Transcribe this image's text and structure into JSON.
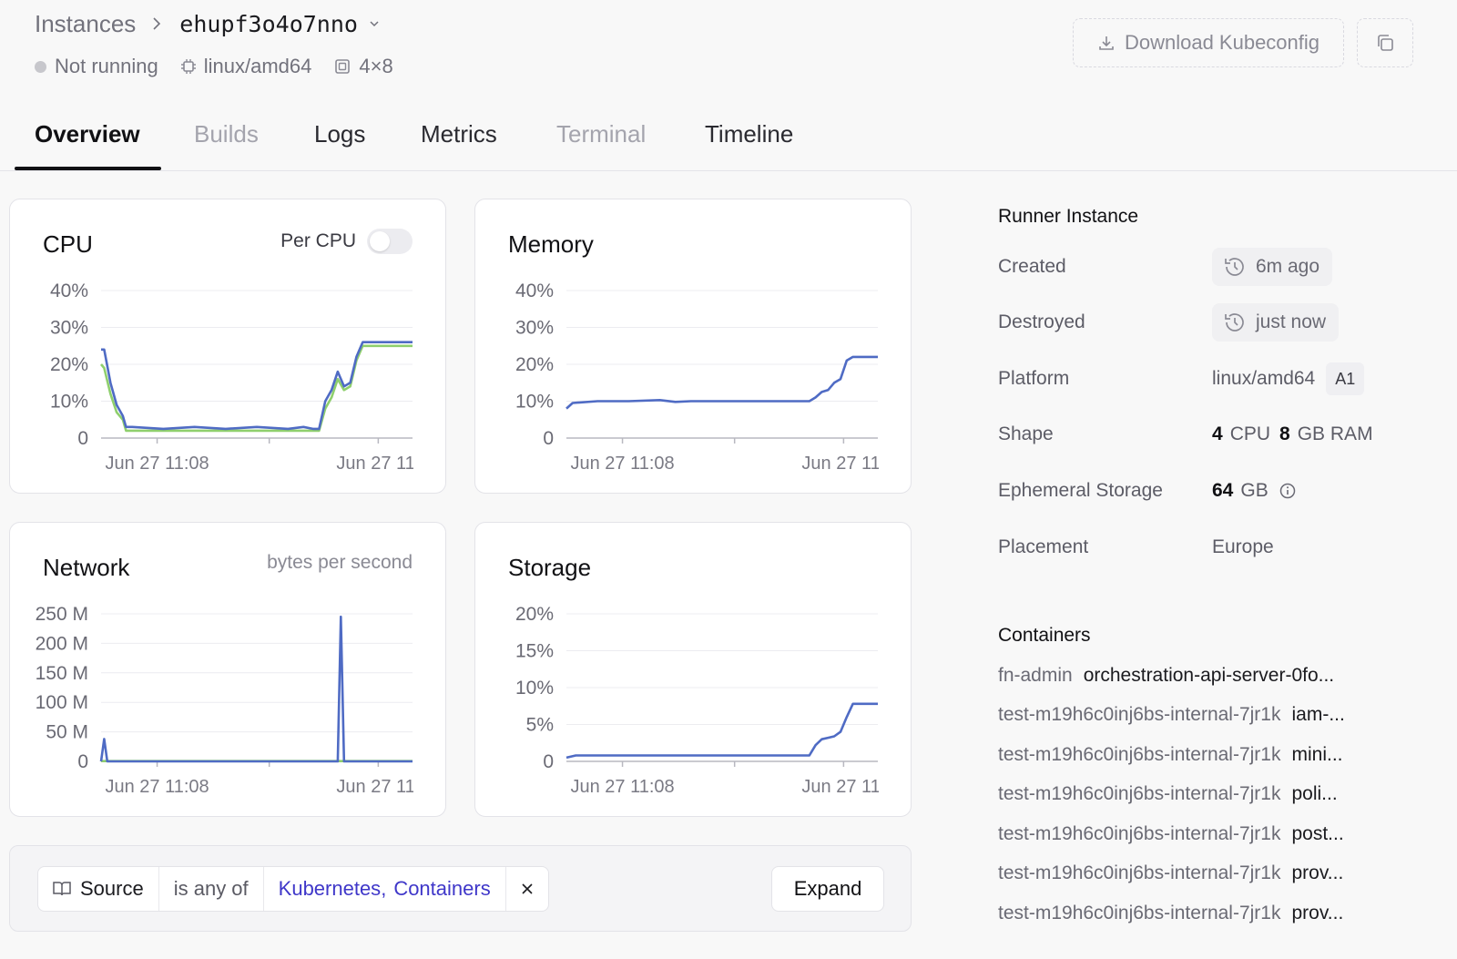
{
  "breadcrumb": {
    "root": "Instances",
    "instance_id": "ehupf3o4o7nno"
  },
  "status": {
    "state": "Not running",
    "platform": "linux/amd64",
    "shape": "4×8"
  },
  "actions": {
    "download_label": "Download Kubeconfig"
  },
  "tabs": [
    {
      "label": "Overview",
      "state": "active"
    },
    {
      "label": "Builds",
      "state": "disabled"
    },
    {
      "label": "Logs",
      "state": "normal"
    },
    {
      "label": "Metrics",
      "state": "normal"
    },
    {
      "label": "Terminal",
      "state": "disabled"
    },
    {
      "label": "Timeline",
      "state": "normal"
    }
  ],
  "cards": {
    "cpu": {
      "title": "CPU",
      "toggle_label": "Per CPU"
    },
    "memory": {
      "title": "Memory"
    },
    "network": {
      "title": "Network",
      "subtitle": "bytes per second"
    },
    "storage": {
      "title": "Storage"
    }
  },
  "colors": {
    "series_blue": "#4f6bc4",
    "series_green": "#8fcf6d",
    "link_purple": "#3f37c9"
  },
  "chart_data": [
    {
      "id": "cpu",
      "type": "line",
      "title": "CPU",
      "ylim": [
        0,
        40
      ],
      "yticks": [
        "0",
        "10%",
        "20%",
        "30%",
        "40%"
      ],
      "ytick_values": [
        0,
        10,
        20,
        30,
        40
      ],
      "xtick_labels": [
        "Jun 27 11:08",
        "Jun 27 11:"
      ],
      "series": [
        {
          "color": "#8fcf6d",
          "x": [
            0,
            1,
            3,
            5,
            7,
            8,
            10,
            20,
            30,
            40,
            50,
            60,
            65,
            68,
            70,
            72,
            74,
            76,
            78,
            80,
            82,
            84,
            86,
            87,
            88,
            100
          ],
          "y": [
            20,
            19,
            12,
            7,
            5,
            2,
            2,
            2,
            2,
            2,
            2,
            2,
            2,
            2,
            2,
            8,
            11,
            16,
            13,
            14,
            21,
            25,
            25,
            25,
            25,
            25
          ]
        },
        {
          "color": "#4f6bc4",
          "x": [
            0,
            1,
            3,
            5,
            7,
            8,
            10,
            20,
            30,
            40,
            50,
            60,
            65,
            68,
            70,
            72,
            74,
            76,
            78,
            80,
            82,
            84,
            86,
            87,
            88,
            100
          ],
          "y": [
            24,
            24,
            15,
            9,
            6,
            3,
            3,
            2.5,
            3,
            2.5,
            3,
            2.5,
            3,
            2.5,
            2.5,
            10,
            13,
            18,
            14,
            15,
            22,
            26,
            26,
            26,
            26,
            26
          ]
        }
      ]
    },
    {
      "id": "memory",
      "type": "line",
      "title": "Memory",
      "ylim": [
        0,
        40
      ],
      "yticks": [
        "0",
        "10%",
        "20%",
        "30%",
        "40%"
      ],
      "ytick_values": [
        0,
        10,
        20,
        30,
        40
      ],
      "xtick_labels": [
        "Jun 27 11:08",
        "Jun 27 11:"
      ],
      "series": [
        {
          "color": "#4f6bc4",
          "x": [
            0,
            2,
            10,
            20,
            30,
            35,
            40,
            50,
            60,
            70,
            78,
            80,
            82,
            84,
            86,
            88,
            90,
            92,
            94,
            100
          ],
          "y": [
            8,
            9.5,
            10,
            10,
            10.3,
            9.8,
            10,
            10,
            10,
            10,
            10,
            11,
            12.5,
            13,
            15,
            16,
            21,
            22,
            22,
            22
          ]
        }
      ]
    },
    {
      "id": "network",
      "type": "line",
      "title": "Network",
      "subtitle": "bytes per second",
      "ylim": [
        0,
        250
      ],
      "yticks": [
        "0",
        "50 M",
        "100 M",
        "150 M",
        "200 M",
        "250 M"
      ],
      "ytick_values": [
        0,
        50,
        100,
        150,
        200,
        250
      ],
      "xtick_labels": [
        "Jun 27 11:08",
        "Jun 27 11:"
      ],
      "series": [
        {
          "color": "#8fcf6d",
          "x": [
            0,
            100
          ],
          "y": [
            0.5,
            0.5
          ]
        },
        {
          "color": "#4f6bc4",
          "x": [
            0,
            1,
            2,
            3,
            4,
            75,
            76,
            77,
            78,
            79,
            80,
            100
          ],
          "y": [
            0,
            38,
            0,
            0,
            0,
            0,
            0,
            245,
            0,
            0,
            0,
            0
          ]
        }
      ]
    },
    {
      "id": "storage",
      "type": "line",
      "title": "Storage",
      "ylim": [
        0,
        20
      ],
      "yticks": [
        "0",
        "5%",
        "10%",
        "15%",
        "20%"
      ],
      "ytick_values": [
        0,
        5,
        10,
        15,
        20
      ],
      "xtick_labels": [
        "Jun 27 11:08",
        "Jun 27 11:"
      ],
      "series": [
        {
          "color": "#4f6bc4",
          "x": [
            0,
            3,
            10,
            20,
            30,
            40,
            50,
            60,
            70,
            78,
            80,
            82,
            84,
            86,
            88,
            90,
            92,
            94,
            100
          ],
          "y": [
            0.5,
            0.8,
            0.8,
            0.8,
            0.8,
            0.8,
            0.8,
            0.8,
            0.8,
            0.8,
            2.2,
            3,
            3.2,
            3.4,
            4,
            6,
            7.8,
            7.8,
            7.8
          ]
        }
      ]
    }
  ],
  "filter": {
    "field": "Source",
    "operator": "is any of",
    "values": [
      "Kubernetes",
      "Containers"
    ],
    "separator": ",",
    "expand_label": "Expand"
  },
  "runner": {
    "section_title": "Runner Instance",
    "created": {
      "label": "Created",
      "value": "6m ago"
    },
    "destroyed": {
      "label": "Destroyed",
      "value": "just now"
    },
    "platform": {
      "label": "Platform",
      "value": "linux/amd64",
      "badge": "A1"
    },
    "shape": {
      "label": "Shape",
      "cpu_count": "4",
      "cpu_unit": "CPU",
      "ram_count": "8",
      "ram_unit": "GB RAM"
    },
    "storage": {
      "label": "Ephemeral Storage",
      "value": "64",
      "unit": "GB"
    },
    "placement": {
      "label": "Placement",
      "value": "Europe"
    }
  },
  "containers": {
    "section_title": "Containers",
    "items": [
      {
        "namespace": "fn-admin",
        "name": "orchestration-api-server-0fo..."
      },
      {
        "namespace": "test-m19h6c0inj6bs-internal-7jr1k",
        "name": "iam-..."
      },
      {
        "namespace": "test-m19h6c0inj6bs-internal-7jr1k",
        "name": "mini..."
      },
      {
        "namespace": "test-m19h6c0inj6bs-internal-7jr1k",
        "name": "poli..."
      },
      {
        "namespace": "test-m19h6c0inj6bs-internal-7jr1k",
        "name": "post..."
      },
      {
        "namespace": "test-m19h6c0inj6bs-internal-7jr1k",
        "name": "prov..."
      },
      {
        "namespace": "test-m19h6c0inj6bs-internal-7jr1k",
        "name": "prov..."
      }
    ]
  }
}
